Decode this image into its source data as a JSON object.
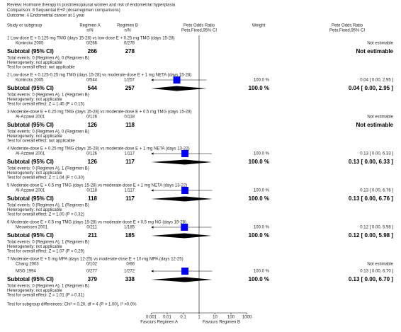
{
  "header": {
    "review": "Review:  Hormone therapy in postmenopausal women and risk of endometrial hyperplasia",
    "comparison": "Comparison:  8 Sequential E+P (dose/regimen comparisons)",
    "outcome": "Outcome:  4 Endometrial cancer at 1 year"
  },
  "chart_data": {
    "type": "forest",
    "color": "#0000ff",
    "columns": {
      "study": "Study or subgroup",
      "a": "Regimen A",
      "a_sub": "n/N",
      "b": "Regimen B",
      "b_sub": "n/N",
      "plot": "Peto Odds Ratio",
      "plot_sub": "Peto,Fixed,95% CI",
      "weight": "Weight",
      "est": "Peto Odds Ratio",
      "est_sub": "Peto,Fixed,95% CI"
    },
    "xlim": [
      0.001,
      1000
    ],
    "xticks": [
      0.001,
      0.01,
      0.1,
      1,
      10,
      100,
      1000
    ],
    "log_scale": true,
    "favours_left": "Favours Regimen A",
    "favours_right": "Favours Regimen B",
    "groups": [
      {
        "title": "1 Low-dose E + 0.125 mg TMG (days 15-28) vs low-dose E + 0.25 mg TMG (days 15-28)",
        "studies": [
          {
            "name": "Koninckx 2005",
            "a": "0/266",
            "b": "0/278",
            "estimate": "Not estimable"
          }
        ],
        "subtotal": {
          "label": "Subtotal (95% CI)",
          "a": 266,
          "b": 278,
          "estimate": "Not estimable"
        },
        "events": "Total events: 0 (Regimen A), 0 (Regimen B)",
        "heterogeneity": "Heterogeneity: not applicable",
        "overall": "Test for overall effect: not applicable"
      },
      {
        "title": "2 Low-dose E + 0.125-0.25 mg TMG (days 15-28) vs moderate-dose E + 1 mg NETA (days 15-28)",
        "studies": [
          {
            "name": "Koninckx 2005",
            "a": "0/544",
            "b": "1/257",
            "weight": "100.0 %",
            "or": 0.04,
            "lo": 0,
            "hi": 2.95,
            "estimate": "0.04 [ 0.00, 2.95 ]"
          }
        ],
        "subtotal": {
          "label": "Subtotal (95% CI)",
          "a": 544,
          "b": 257,
          "weight": "100.0 %",
          "or": 0.04,
          "lo": 0,
          "hi": 2.95,
          "estimate": "0.04 [ 0.00, 2.95 ]"
        },
        "events": "Total events: 0 (Regimen A), 1 (Regimen B)",
        "heterogeneity": "Heterogeneity: not applicable",
        "overall": "Test for overall effect: Z = 1.45 (P = 0.15)"
      },
      {
        "title": "3 Moderate-dose E + 0.25 mg TMG (days 15-28) vs moderate-dose E + 0.5 mg TMG (days 15-28)",
        "studies": [
          {
            "name": "Al-Azzawi 2001",
            "a": "0/126",
            "b": "0/118",
            "estimate": "Not estimable"
          }
        ],
        "subtotal": {
          "label": "Subtotal (95% CI)",
          "a": 126,
          "b": 118,
          "estimate": "Not estimable"
        },
        "events": "Total events: 0 (Regimen A), 0 (Regimen B)",
        "heterogeneity": "Heterogeneity: not applicable",
        "overall": "Test for overall effect: not applicable"
      },
      {
        "title": "4 Moderate-dose E + 0.25 mg TMG (days 15-28) vs moderate-dose E + 1 mg NETA (days 13-22)",
        "studies": [
          {
            "name": "Al-Azzawi 2001",
            "a": "0/126",
            "b": "1/117",
            "weight": "100.0 %",
            "or": 0.13,
            "lo": 0,
            "hi": 6.33,
            "estimate": "0.13 [ 0.00, 6.33 ]"
          }
        ],
        "subtotal": {
          "label": "Subtotal (95% CI)",
          "a": 126,
          "b": 117,
          "weight": "100.0 %",
          "or": 0.13,
          "lo": 0,
          "hi": 6.33,
          "estimate": "0.13 [ 0.00, 6.33 ]"
        },
        "events": "Total events: 0 (Regimen A), 1 (Regimen B)",
        "heterogeneity": "Heterogeneity: not applicable",
        "overall": "Test for overall effect: Z = 1.04 (P = 0.30)"
      },
      {
        "title": "5 Moderate-dose E + 0.5 mg TMG (days 15-28) vs moderate-dose E + 1 mg NETA (days 13-22)",
        "studies": [
          {
            "name": "Al-Azzawi 2001",
            "a": "0/118",
            "b": "1/117",
            "weight": "100.0 %",
            "or": 0.13,
            "lo": 0,
            "hi": 6.76,
            "estimate": "0.13 [ 0.00, 6.76 ]"
          }
        ],
        "subtotal": {
          "label": "Subtotal (95% CI)",
          "a": 118,
          "b": 117,
          "weight": "100.0 %",
          "or": 0.13,
          "lo": 0,
          "hi": 6.76,
          "estimate": "0.13 [ 0.00, 6.76 ]"
        },
        "events": "Total events: 0 (Regimen A), 1 (Regimen B)",
        "heterogeneity": "Heterogeneity: not applicable",
        "overall": "Test for overall effect: Z = 1.00 (P = 0.32)"
      },
      {
        "title": "6 Moderate-dose E + 0.5 mg TMG (days 15-28) vs moderate-dose E + 0.5 mg NG (days 19-28)",
        "studies": [
          {
            "name": "Meuwissen 2001",
            "a": "0/211",
            "b": "1/185",
            "weight": "100.0 %",
            "or": 0.12,
            "lo": 0,
            "hi": 5.98,
            "estimate": "0.12 [ 0.00, 5.98 ]"
          }
        ],
        "subtotal": {
          "label": "Subtotal (95% CI)",
          "a": 211,
          "b": 185,
          "weight": "100.0 %",
          "or": 0.12,
          "lo": 0,
          "hi": 5.98,
          "estimate": "0.12 [ 0.00, 5.98 ]"
        },
        "events": "Total events: 0 (Regimen A), 1 (Regimen B)",
        "heterogeneity": "Heterogeneity: not applicable",
        "overall": "Test for overall effect: Z = 1.07 (P = 0.29)"
      },
      {
        "title": "7 Moderate-dose E + 5 mg MPA (days 12-25) vs moderate-dose E + 10 mg MPA (days 12-25)",
        "studies": [
          {
            "name": "Chang 2003",
            "a": "0/102",
            "b": "0/66",
            "estimate": "Not estimable"
          },
          {
            "name": "MSG 1994",
            "a": "0/277",
            "b": "1/272",
            "weight": "100.0 %",
            "or": 0.13,
            "lo": 0,
            "hi": 6.7,
            "estimate": "0.13 [ 0.00, 6.70 ]"
          }
        ],
        "subtotal": {
          "label": "Subtotal (95% CI)",
          "a": 379,
          "b": 338,
          "weight": "100.0 %",
          "or": 0.13,
          "lo": 0,
          "hi": 6.7,
          "estimate": "0.13 [ 0.00, 6.70 ]"
        },
        "events": "Total events: 0 (Regimen A), 1 (Regimen B)",
        "heterogeneity": "Heterogeneity: not applicable",
        "overall": "Test for overall effect: Z = 1.01 (P = 0.31)"
      }
    ],
    "subgroup_test": "Test for subgroup differences: Chi² = 0.20, df = 4 (P = 1.00), I² =0.0%"
  }
}
